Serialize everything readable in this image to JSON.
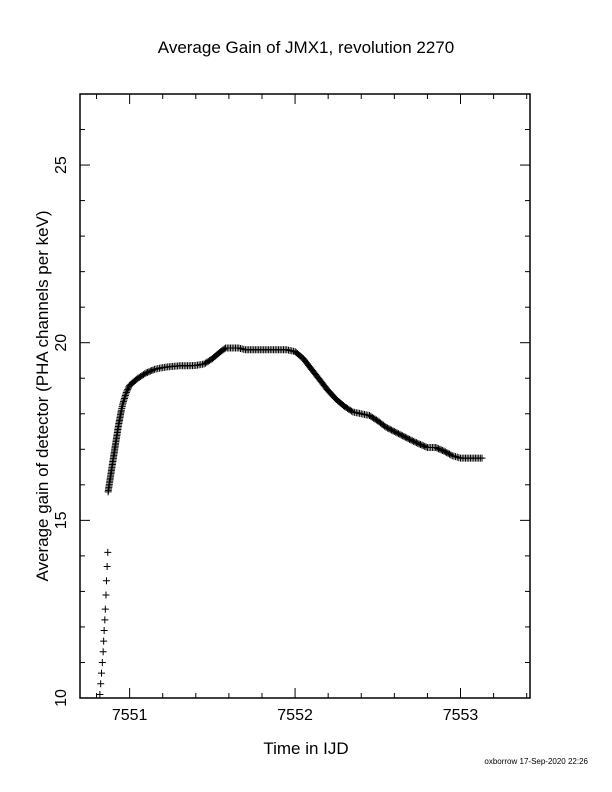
{
  "chart_data": {
    "type": "scatter",
    "title": "Average Gain of JMX1, revolution 2270",
    "xlabel": "Time in IJD",
    "ylabel": "Average gain of detector (PHA channels per keV)",
    "xlim": [
      7550.7,
      7553.42
    ],
    "ylim": [
      10,
      27
    ],
    "xticks": [
      7551,
      7552,
      7553
    ],
    "xtick_labels": [
      "7551",
      "7552",
      "7553"
    ],
    "yticks": [
      10,
      15,
      20,
      25
    ],
    "ytick_labels": [
      "10",
      "15",
      "20",
      "25"
    ],
    "marker": "plus",
    "grid": false,
    "series": [
      {
        "color": "#000000",
        "points": [
          [
            7550.82,
            10.1
          ],
          [
            7550.825,
            10.4
          ],
          [
            7550.83,
            10.7
          ],
          [
            7550.835,
            11.0
          ],
          [
            7550.84,
            11.3
          ],
          [
            7550.843,
            11.6
          ],
          [
            7550.846,
            11.9
          ],
          [
            7550.85,
            12.2
          ],
          [
            7550.853,
            12.5
          ],
          [
            7550.857,
            12.9
          ],
          [
            7550.86,
            13.3
          ],
          [
            7550.864,
            13.7
          ],
          [
            7550.868,
            14.1
          ],
          [
            7550.87,
            15.8
          ],
          [
            7550.88,
            16.1
          ],
          [
            7550.89,
            16.4
          ],
          [
            7550.9,
            16.7
          ],
          [
            7550.91,
            17.0
          ],
          [
            7550.92,
            17.3
          ],
          [
            7550.93,
            17.6
          ],
          [
            7550.94,
            17.85
          ],
          [
            7550.95,
            18.1
          ],
          [
            7550.96,
            18.3
          ],
          [
            7550.98,
            18.6
          ],
          [
            7551.0,
            18.8
          ],
          [
            7551.05,
            19.0
          ],
          [
            7551.1,
            19.15
          ],
          [
            7551.15,
            19.25
          ],
          [
            7551.2,
            19.3
          ],
          [
            7551.25,
            19.33
          ],
          [
            7551.3,
            19.35
          ],
          [
            7551.35,
            19.35
          ],
          [
            7551.4,
            19.36
          ],
          [
            7551.45,
            19.4
          ],
          [
            7551.5,
            19.55
          ],
          [
            7551.55,
            19.75
          ],
          [
            7551.58,
            19.85
          ],
          [
            7551.62,
            19.85
          ],
          [
            7551.66,
            19.85
          ],
          [
            7551.7,
            19.8
          ],
          [
            7551.75,
            19.8
          ],
          [
            7551.8,
            19.8
          ],
          [
            7551.85,
            19.8
          ],
          [
            7551.9,
            19.8
          ],
          [
            7551.95,
            19.8
          ],
          [
            7552.0,
            19.75
          ],
          [
            7552.05,
            19.55
          ],
          [
            7552.1,
            19.25
          ],
          [
            7552.15,
            18.95
          ],
          [
            7552.2,
            18.65
          ],
          [
            7552.25,
            18.4
          ],
          [
            7552.3,
            18.2
          ],
          [
            7552.35,
            18.05
          ],
          [
            7552.4,
            18.0
          ],
          [
            7552.45,
            17.95
          ],
          [
            7552.5,
            17.8
          ],
          [
            7552.55,
            17.62
          ],
          [
            7552.6,
            17.5
          ],
          [
            7552.65,
            17.38
          ],
          [
            7552.7,
            17.26
          ],
          [
            7552.75,
            17.15
          ],
          [
            7552.8,
            17.05
          ],
          [
            7552.85,
            17.05
          ],
          [
            7552.9,
            16.95
          ],
          [
            7552.95,
            16.82
          ],
          [
            7553.0,
            16.75
          ],
          [
            7553.05,
            16.75
          ],
          [
            7553.1,
            16.75
          ],
          [
            7553.13,
            16.75
          ]
        ]
      }
    ]
  },
  "footer": {
    "credit": "oxborrow 17-Sep-2020 22:26"
  }
}
